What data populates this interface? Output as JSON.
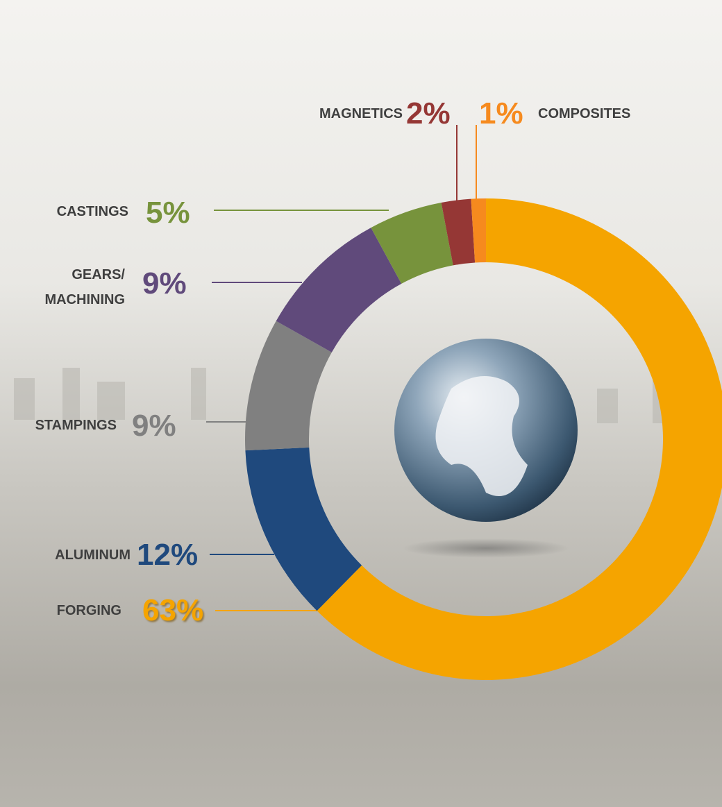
{
  "chart_data": {
    "type": "donut",
    "categories": [
      "FORGING",
      "ALUMINUM",
      "STAMPINGS",
      "GEARS/ MACHINING",
      "CASTINGS",
      "MAGNETICS",
      "COMPOSITES"
    ],
    "values": [
      63,
      12,
      9,
      9,
      5,
      2,
      1
    ],
    "value_labels": [
      "63%",
      "12%",
      "9%",
      "9%",
      "5%",
      "2%",
      "1%"
    ],
    "colors": [
      "#f5a400",
      "#1f497d",
      "#808080",
      "#604a7b",
      "#77933c",
      "#953735",
      "#f68a1e"
    ]
  }
}
